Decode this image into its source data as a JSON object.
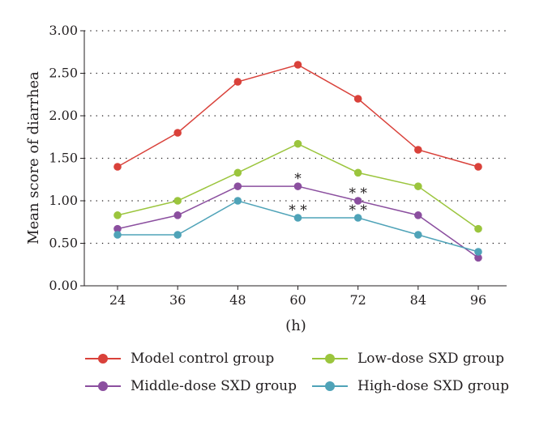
{
  "chart_data": {
    "type": "line",
    "xlabel": "(h)",
    "ylabel": "Mean score of diarrhea",
    "x": [
      24,
      36,
      48,
      60,
      72,
      84,
      96
    ],
    "x_tick_labels": [
      "24",
      "36",
      "48",
      "60",
      "72",
      "84",
      "96"
    ],
    "ylim": [
      0,
      3
    ],
    "y_ticks": [
      "0.00",
      "0.50",
      "1.00",
      "1.50",
      "2.00",
      "2.50",
      "3.00"
    ],
    "grid": "horizontal dotted",
    "legend_placement": "bottom",
    "series": [
      {
        "name": "Model control group",
        "color": "#d9413a",
        "values": [
          1.4,
          1.8,
          2.4,
          2.6,
          2.2,
          1.6,
          1.4
        ]
      },
      {
        "name": "Low-dose SXD group",
        "color": "#9bc53d",
        "values": [
          0.83,
          1.0,
          1.33,
          1.67,
          1.33,
          1.17,
          0.67
        ]
      },
      {
        "name": "Middle-dose SXD group",
        "color": "#8b4f9f",
        "values": [
          0.67,
          0.83,
          1.17,
          1.17,
          1.0,
          0.83,
          0.33
        ]
      },
      {
        "name": "High-dose SXD group",
        "color": "#4fa3b8",
        "values": [
          0.6,
          0.6,
          1.0,
          0.8,
          0.8,
          0.6,
          0.4
        ]
      }
    ],
    "annotations": [
      {
        "text": "*",
        "x": 60,
        "y": 1.17
      },
      {
        "text": "* *",
        "x": 72,
        "y": 1.0
      },
      {
        "text": "* *",
        "x": 60,
        "y": 0.8
      },
      {
        "text": "* *",
        "x": 72,
        "y": 0.8
      }
    ]
  }
}
